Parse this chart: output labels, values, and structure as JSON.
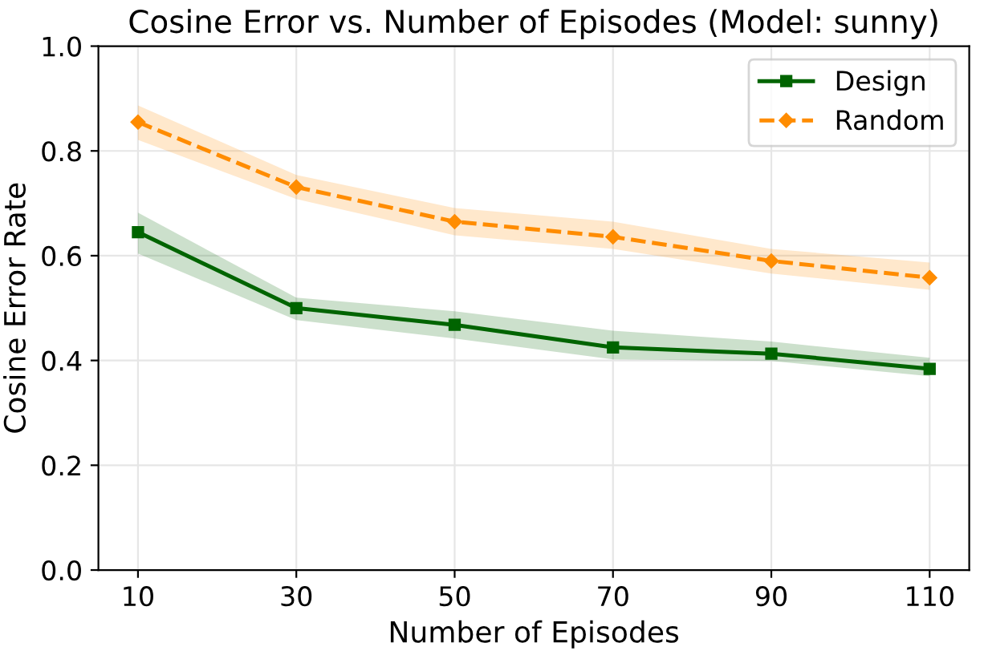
{
  "chart_data": {
    "type": "line",
    "title": "Cosine Error vs. Number of Episodes (Model: sunny)",
    "xlabel": "Number of Episodes",
    "ylabel": "Cosine Error Rate",
    "x": [
      10,
      30,
      50,
      70,
      90,
      110
    ],
    "series": [
      {
        "name": "Design",
        "color": "#006400",
        "marker": "square",
        "line_style": "solid",
        "values": [
          0.645,
          0.5,
          0.468,
          0.425,
          0.413,
          0.384
        ],
        "lower": [
          0.604,
          0.477,
          0.442,
          0.402,
          0.399,
          0.37
        ],
        "upper": [
          0.682,
          0.52,
          0.494,
          0.457,
          0.436,
          0.405
        ]
      },
      {
        "name": "Random",
        "color": "#ff8c00",
        "marker": "diamond",
        "line_style": "dashed",
        "values": [
          0.855,
          0.731,
          0.665,
          0.636,
          0.59,
          0.558
        ],
        "lower": [
          0.821,
          0.708,
          0.639,
          0.613,
          0.566,
          0.535
        ],
        "upper": [
          0.887,
          0.754,
          0.691,
          0.665,
          0.613,
          0.587
        ]
      }
    ],
    "xlim": [
      5,
      115
    ],
    "xticks": [
      10,
      30,
      50,
      70,
      90,
      110
    ],
    "ylim": [
      0,
      1.0
    ],
    "yticks": [
      {
        "value": 0,
        "label": "0.0"
      },
      {
        "value": 0.2,
        "label": "0.2"
      },
      {
        "value": 0.4,
        "label": "0.4"
      },
      {
        "value": 0.6,
        "label": "0.6"
      },
      {
        "value": 0.8,
        "label": "0.8"
      },
      {
        "value": 1.0,
        "label": "1.0"
      }
    ],
    "grid": true,
    "legend": "top right"
  }
}
